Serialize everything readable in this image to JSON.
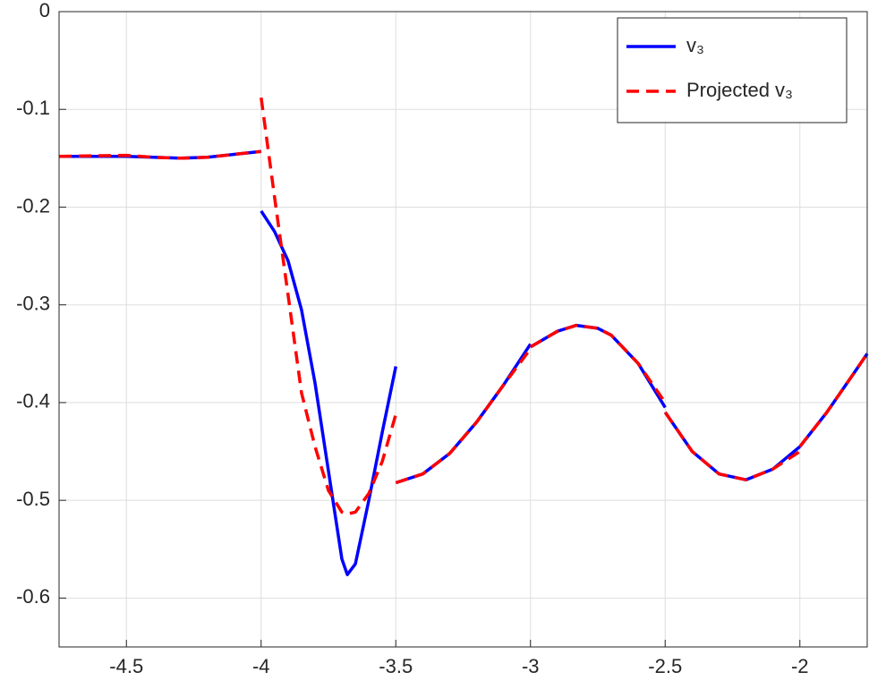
{
  "chart_data": {
    "type": "line",
    "x": [
      -4.75,
      -4.5,
      -4.4,
      -4.3,
      -4.2,
      -4.1,
      -4.0,
      null,
      -4.0,
      -3.95,
      -3.9,
      -3.85,
      -3.8,
      -3.75,
      -3.7,
      -3.68,
      -3.65,
      -3.6,
      -3.55,
      -3.5,
      null,
      -3.5,
      -3.4,
      -3.3,
      -3.2,
      -3.1,
      -3.0,
      null,
      -3.0,
      -2.9,
      -2.83,
      -2.75,
      -2.7,
      -2.6,
      -2.5,
      null,
      -2.5,
      -2.4,
      -2.3,
      -2.2,
      -2.1,
      -2.0,
      null,
      -2.0,
      -1.9,
      -1.8,
      -1.75
    ],
    "series": [
      {
        "name": "v₃",
        "color": "#0000ff",
        "dash": false,
        "values": [
          -0.148,
          -0.148,
          -0.149,
          -0.15,
          -0.149,
          -0.146,
          -0.143,
          null,
          -0.204,
          -0.225,
          -0.255,
          -0.305,
          -0.38,
          -0.47,
          -0.56,
          -0.576,
          -0.565,
          -0.5,
          -0.43,
          -0.363,
          null,
          -0.482,
          -0.473,
          -0.452,
          -0.42,
          -0.382,
          -0.34,
          null,
          -0.343,
          -0.327,
          -0.321,
          -0.324,
          -0.331,
          -0.36,
          -0.405,
          null,
          -0.41,
          -0.45,
          -0.473,
          -0.479,
          -0.468,
          -0.445,
          null,
          -0.445,
          -0.41,
          -0.37,
          -0.35
        ]
      },
      {
        "name": "Projected v₃",
        "color": "#ff0000",
        "dash": true,
        "values": [
          -0.148,
          -0.147,
          -0.149,
          -0.15,
          -0.149,
          -0.146,
          -0.143,
          null,
          -0.088,
          -0.19,
          -0.29,
          -0.39,
          -0.445,
          -0.49,
          -0.512,
          -0.514,
          -0.512,
          -0.493,
          -0.46,
          -0.412,
          null,
          -0.482,
          -0.473,
          -0.452,
          -0.42,
          -0.382,
          -0.345,
          null,
          -0.343,
          -0.327,
          -0.321,
          -0.324,
          -0.331,
          -0.36,
          -0.4,
          null,
          -0.41,
          -0.45,
          -0.473,
          -0.479,
          -0.468,
          -0.45,
          null,
          -0.445,
          -0.41,
          -0.37,
          -0.35
        ]
      }
    ],
    "xlim": [
      -4.75,
      -1.75
    ],
    "xticks": [
      -4.5,
      -4,
      -3.5,
      -3,
      -2.5,
      -2
    ],
    "ylim": [
      -0.65,
      0
    ],
    "yticks": [
      -0.6,
      -0.5,
      -0.4,
      -0.3,
      -0.2,
      -0.1,
      0
    ],
    "grid": true,
    "legend": "top-right"
  }
}
